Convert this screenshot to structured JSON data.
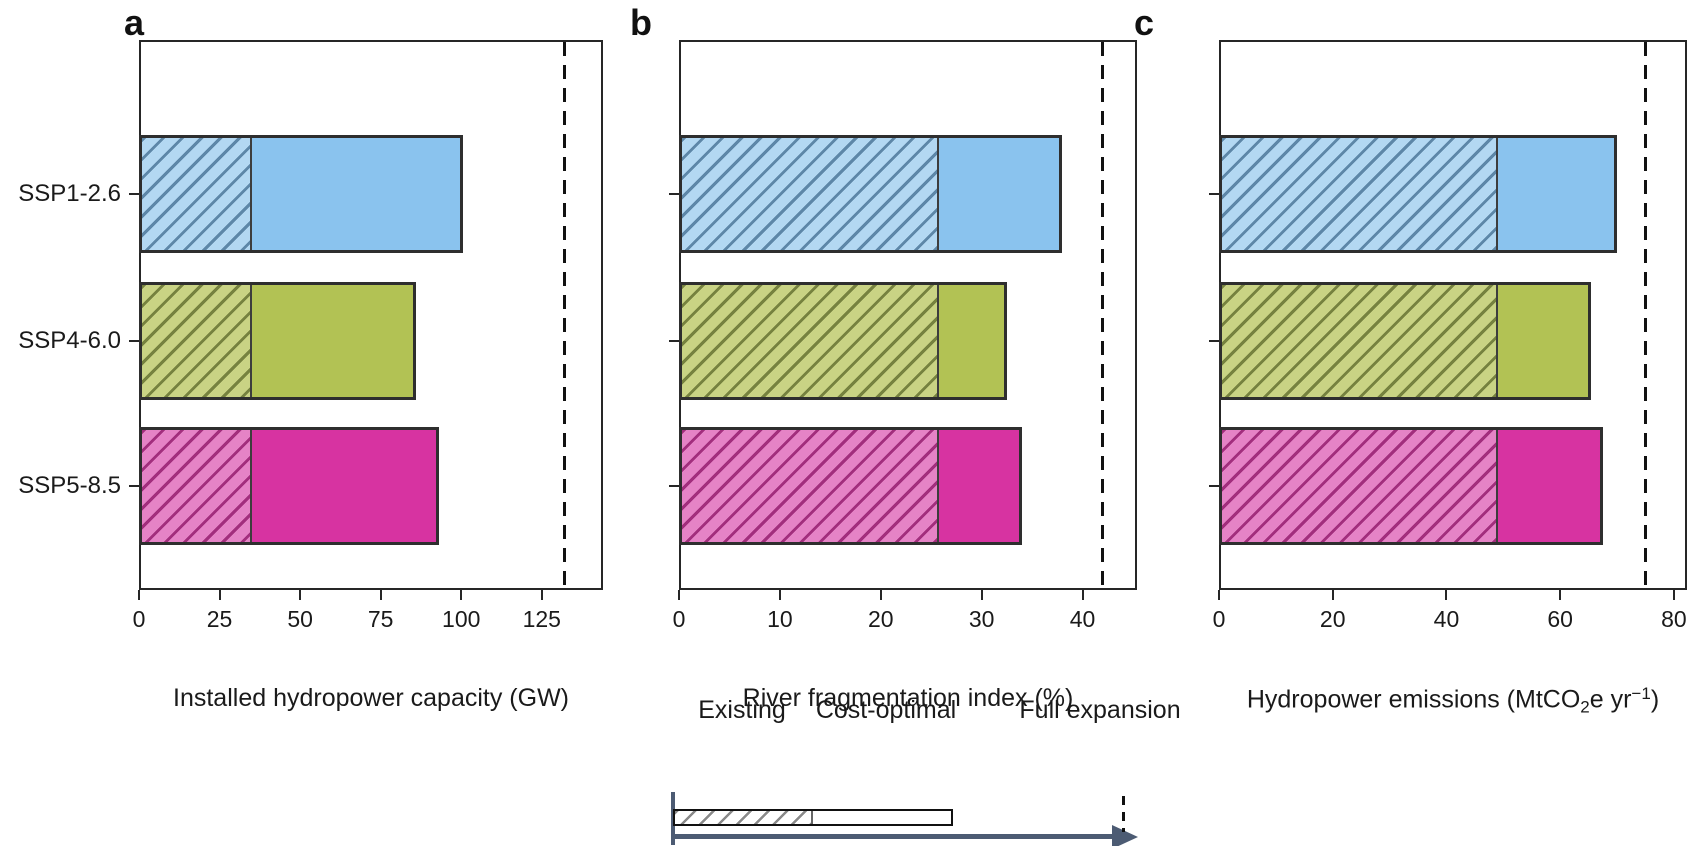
{
  "figure": {
    "type": "three-panel-horizontal-stacked-bar-figure",
    "background": "#ffffff",
    "plot_border_color": "#262626",
    "full_expansion_line_color": "#111111",
    "legend_arrow_color": "#4c5b73",
    "bar_colors": [
      {
        "category": "SSP1-2.6",
        "solid": "#8ac3ee",
        "hatch_bg": "#b3d8f2",
        "hatch_line": "#5d87a8"
      },
      {
        "category": "SSP4-6.0",
        "solid": "#b2c254",
        "hatch_bg": "#c9d384",
        "hatch_line": "#76823f"
      },
      {
        "category": "SSP5-8.5",
        "solid": "#d733a1",
        "hatch_bg": "#e583c6",
        "hatch_line": "#a22e7d"
      }
    ]
  },
  "chart_data": [
    {
      "panel": "a",
      "type": "bar",
      "orientation": "horizontal",
      "grid": false,
      "legend_position": "shared-bottom",
      "categories": [
        "SSP1-2.6",
        "SSP4-6.0",
        "SSP5-8.5"
      ],
      "series": [
        {
          "name": "Existing",
          "style": "hatched",
          "values": [
            34,
            34,
            34
          ]
        },
        {
          "name": "Cost-optimal",
          "style": "solid",
          "values": [
            66.5,
            52,
            59
          ]
        }
      ],
      "totals": [
        100.5,
        86,
        93
      ],
      "full_expansion": 132,
      "xlabel": "Installed hydropower capacity (GW)",
      "xlabel_parts": [
        {
          "t": "Installed hydropower capacity (GW)",
          "s": "n"
        }
      ],
      "xticks": [
        0,
        25,
        50,
        75,
        100,
        125
      ],
      "xlim": [
        0,
        144
      ],
      "show_y_labels": true
    },
    {
      "panel": "b",
      "type": "bar",
      "orientation": "horizontal",
      "grid": false,
      "legend_position": "shared-bottom",
      "categories": [
        "SSP1-2.6",
        "SSP4-6.0",
        "SSP5-8.5"
      ],
      "series": [
        {
          "name": "Existing",
          "style": "hatched",
          "values": [
            25.5,
            25.5,
            25.5
          ]
        },
        {
          "name": "Cost-optimal",
          "style": "solid",
          "values": [
            12.5,
            7,
            8.5
          ]
        }
      ],
      "totals": [
        38,
        32.5,
        34
      ],
      "full_expansion": 42,
      "xlabel": "River fragmentation index (%)",
      "xlabel_parts": [
        {
          "t": "River fragmentation index (%)",
          "s": "n"
        }
      ],
      "xticks": [
        0,
        10,
        20,
        30,
        40
      ],
      "xlim": [
        0,
        45.4
      ],
      "show_y_labels": false
    },
    {
      "panel": "c",
      "type": "bar",
      "orientation": "horizontal",
      "grid": false,
      "legend_position": "shared-bottom",
      "categories": [
        "SSP1-2.6",
        "SSP4-6.0",
        "SSP5-8.5"
      ],
      "series": [
        {
          "name": "Existing",
          "style": "hatched",
          "values": [
            48.5,
            48.5,
            48.5
          ]
        },
        {
          "name": "Cost-optimal",
          "style": "solid",
          "values": [
            21.5,
            17,
            19
          ]
        }
      ],
      "totals": [
        70,
        65.5,
        67.5
      ],
      "full_expansion": 75,
      "xlabel": "Hydropower emissions (MtCO2e yr-1)",
      "xlabel_parts": [
        {
          "t": "Hydropower emissions (MtCO",
          "s": "n"
        },
        {
          "t": "2",
          "s": "sub"
        },
        {
          "t": "e yr",
          "s": "n"
        },
        {
          "t": "−1",
          "s": "sup"
        },
        {
          "t": ")",
          "s": "n"
        }
      ],
      "xticks": [
        0,
        20,
        40,
        60,
        80
      ],
      "xlim": [
        0,
        82.3
      ],
      "show_y_labels": false
    }
  ],
  "legend": {
    "existing_label": "Existing",
    "cost_optimal_label": "Cost-optimal",
    "full_expansion_label": "Full expansion"
  }
}
